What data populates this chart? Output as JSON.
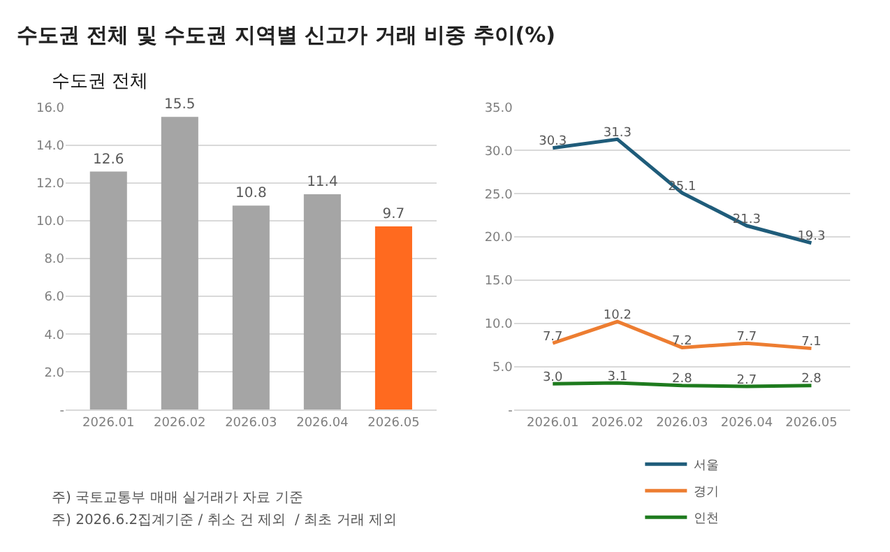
{
  "chart_data": [
    {
      "type": "bar",
      "title": "수도권 전체 및 수도권 지역별 신고가 거래 비중 추이(%)",
      "subtitle": "수도권 전체",
      "categories": [
        "2026.01",
        "2026.02",
        "2026.03",
        "2026.04",
        "2026.05"
      ],
      "values": [
        12.6,
        15.5,
        10.8,
        11.4,
        9.7
      ],
      "colors": [
        "#a5a5a5",
        "#a5a5a5",
        "#a5a5a5",
        "#a5a5a5",
        "#ff6a1f"
      ],
      "ylim": [
        0,
        16
      ],
      "yticks": [
        {
          "value": 0,
          "label": "-"
        },
        {
          "value": 2,
          "label": "2.0"
        },
        {
          "value": 4,
          "label": "4.0"
        },
        {
          "value": 6,
          "label": "6.0"
        },
        {
          "value": 8,
          "label": "8.0"
        },
        {
          "value": 10,
          "label": "10.0"
        },
        {
          "value": 12,
          "label": "12.0"
        },
        {
          "value": 14,
          "label": "14.0"
        },
        {
          "value": 16,
          "label": "16.0"
        }
      ],
      "grid": "y",
      "data_labels": true
    },
    {
      "type": "line",
      "categories": [
        "2026.01",
        "2026.02",
        "2026.03",
        "2026.04",
        "2026.05"
      ],
      "series": [
        {
          "name": "서울",
          "color": "#1f5c7a",
          "values": [
            30.3,
            31.3,
            25.1,
            21.3,
            19.3
          ],
          "value_labels": [
            "30.3",
            "31.3",
            "25.1",
            "21.3",
            "19.3"
          ]
        },
        {
          "name": "경기",
          "color": "#ed7d31",
          "values": [
            7.7,
            10.2,
            7.2,
            7.7,
            7.1
          ],
          "value_labels": [
            "7.7",
            "10.2",
            "7.2",
            "7.7",
            "7.1"
          ]
        },
        {
          "name": "인천",
          "color": "#1e7b1e",
          "values": [
            3.0,
            3.1,
            2.8,
            2.7,
            2.8
          ],
          "value_labels": [
            "3.0",
            "3.1",
            "2.8",
            "2.7",
            "2.8"
          ]
        }
      ],
      "ylim": [
        0,
        35
      ],
      "yticks": [
        {
          "value": 0,
          "label": "-"
        },
        {
          "value": 5,
          "label": "5.0"
        },
        {
          "value": 10,
          "label": "10.0"
        },
        {
          "value": 15,
          "label": "15.0"
        },
        {
          "value": 20,
          "label": "20.0"
        },
        {
          "value": 25,
          "label": "25.0"
        },
        {
          "value": 30,
          "label": "30.0"
        },
        {
          "value": 35,
          "label": "35.0"
        }
      ],
      "grid": "y",
      "legend": "bottom",
      "marker": "none",
      "line_style": "solid",
      "annotations": [
        "주) 국토교통부 매매 실거래가 자료 기준",
        "주) 2026.6.2집계기준 / 취소 건 제외  / 최초 거래 제외"
      ]
    }
  ]
}
